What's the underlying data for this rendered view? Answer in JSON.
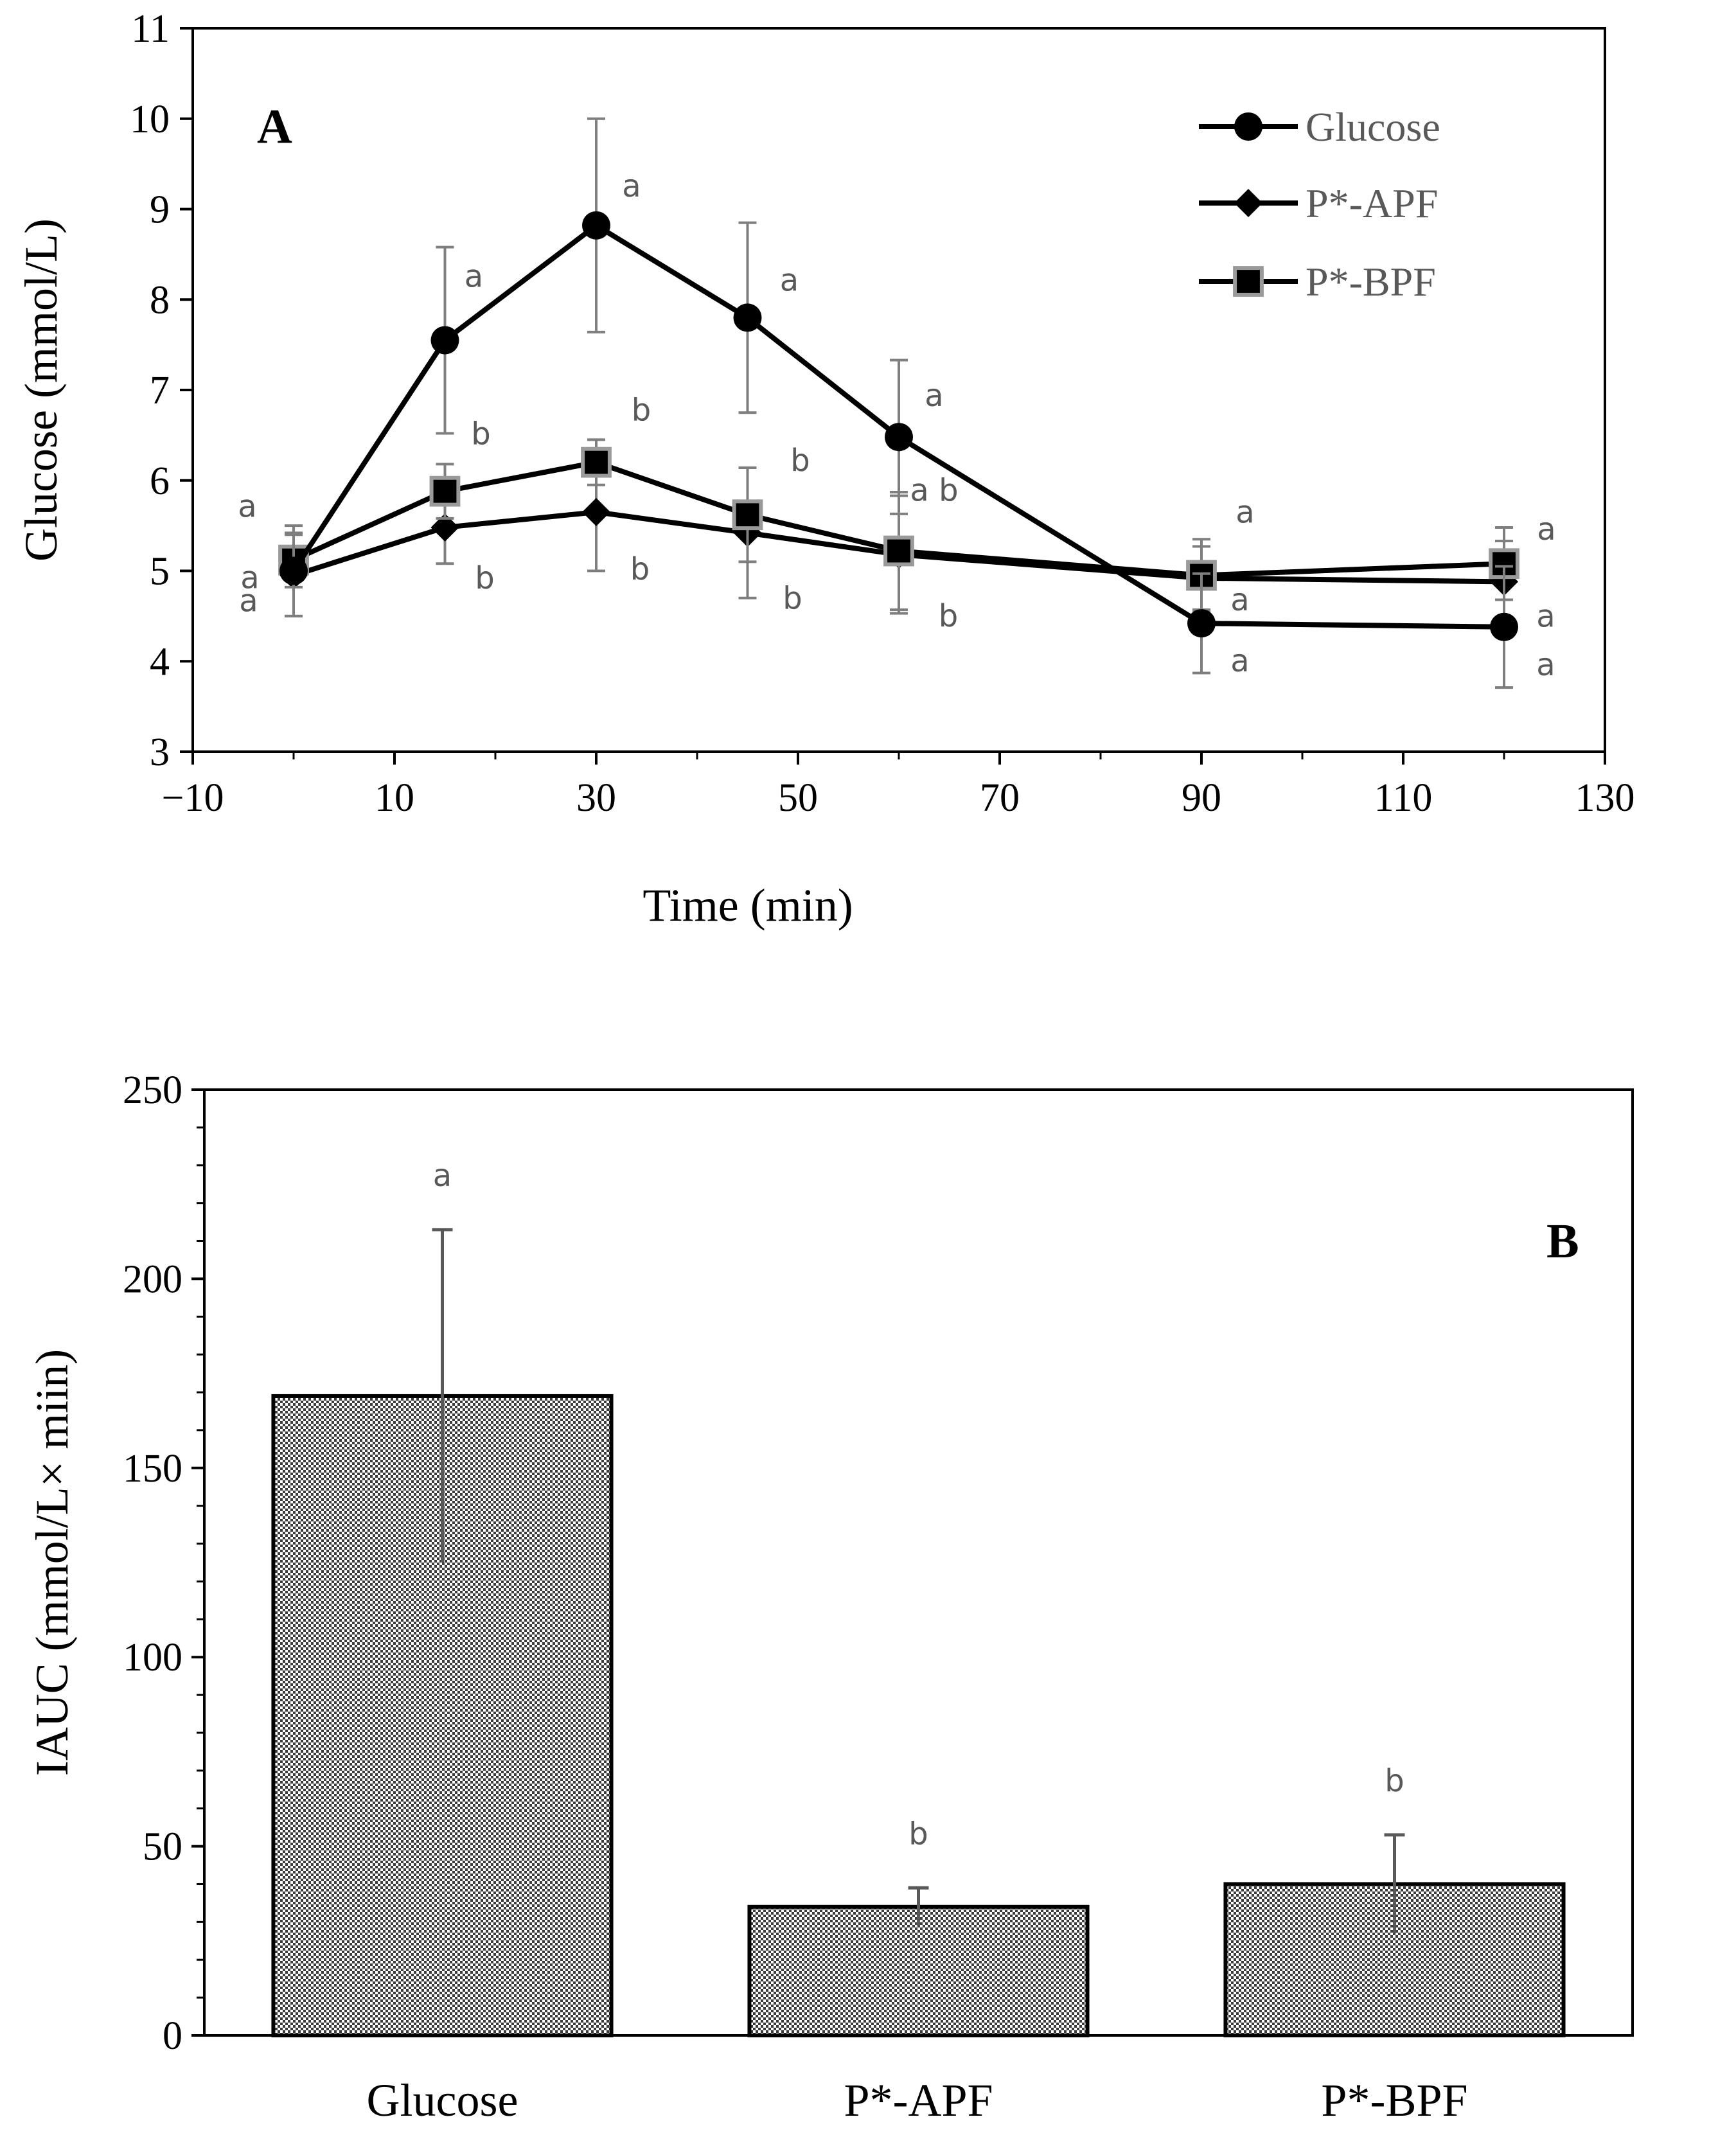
{
  "chart_data": [
    {
      "type": "line",
      "panel_label": "A",
      "xlabel": "Time (min)",
      "ylabel": "Glucose (mmol/L)",
      "xlim": [
        -10,
        130
      ],
      "ylim": [
        3,
        11
      ],
      "x_ticks": [
        -10,
        10,
        30,
        50,
        70,
        90,
        110,
        130
      ],
      "x_tick_labels": [
        "−10",
        "10",
        "30",
        "50",
        "70",
        "90",
        "110",
        "130"
      ],
      "y_ticks": [
        3,
        4,
        5,
        6,
        7,
        8,
        9,
        10,
        11
      ],
      "x": [
        0,
        15,
        30,
        45,
        60,
        90,
        120
      ],
      "grid": false,
      "legend_position": "top-right",
      "series": [
        {
          "name": "Glucose",
          "marker": "circle",
          "values": [
            5.0,
            7.55,
            8.82,
            7.8,
            6.48,
            4.42,
            4.38
          ],
          "errors": [
            0.5,
            1.03,
            1.18,
            1.05,
            0.85,
            0.55,
            0.67
          ],
          "labels": [
            "a",
            "a",
            "a",
            "a",
            "a",
            "a",
            "a"
          ]
        },
        {
          "name": "P*-APF",
          "marker": "diamond",
          "values": [
            4.95,
            5.48,
            5.65,
            5.42,
            5.18,
            4.92,
            4.88
          ],
          "errors": [
            0.45,
            0.4,
            0.65,
            0.72,
            0.65,
            0.35,
            0.45
          ],
          "labels": [
            "a",
            "b",
            "b",
            "b",
            "b",
            "a",
            "a"
          ]
        },
        {
          "name": "P*-BPF",
          "marker": "square",
          "values": [
            5.12,
            5.88,
            6.2,
            5.62,
            5.22,
            4.95,
            5.08
          ],
          "errors": [
            0.3,
            0.3,
            0.25,
            0.52,
            0.65,
            0.4,
            0.4
          ],
          "labels": [
            "a",
            "b",
            "b",
            "b",
            "a b",
            "a",
            "a"
          ]
        }
      ]
    },
    {
      "type": "bar",
      "panel_label": "B",
      "xlabel": "",
      "ylabel": "IAUC (mmol/L× miin)",
      "ylim": [
        0,
        250
      ],
      "y_ticks": [
        0,
        50,
        100,
        150,
        200,
        250
      ],
      "categories": [
        "Glucose",
        "P*-APF",
        "P*-BPF"
      ],
      "values": [
        169,
        34,
        40
      ],
      "errors": [
        44,
        5,
        13
      ],
      "labels": [
        "a",
        "b",
        "b"
      ],
      "grid": false
    }
  ]
}
